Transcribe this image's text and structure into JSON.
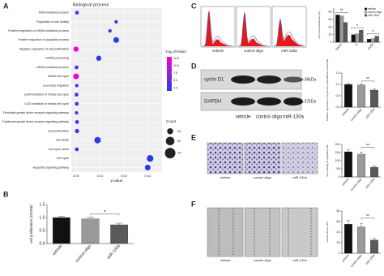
{
  "panel_labels": [
    "A",
    "B",
    "C",
    "D",
    "E",
    "F"
  ],
  "images": {
    "C": [
      "vehicle",
      "control oligo",
      "miR-130a"
    ],
    "D": {
      "bands": [
        "cyclin D1",
        "GAPDH"
      ],
      "markers": [
        "-36kDa",
        "-37kDa"
      ],
      "lanes": [
        "vehicle",
        "control oligo",
        "miR-130a"
      ]
    },
    "E": [
      "vehicle",
      "control oligo",
      "miR-130a"
    ],
    "F": [
      "vehicle",
      "control oligo",
      "miR-130a"
    ]
  },
  "chart_data": [
    {
      "type": "dot",
      "title": "Biological process",
      "xlabel": "p-value",
      "categories": [
        "RNA metabolic process",
        "Regulation of cell motility",
        "Positive regulation of mRNA metabolic process",
        "Positive regulation of apoptotic process",
        "Negative regulation of cell proliferation",
        "mRNA processing",
        "mRNA metabolic process",
        "Mitotic cell cycle",
        "Leucocyte migration",
        "G2/M transition of mitotic cell cycle",
        "G1/S transition of mitotic cell cycle",
        "Fibroblast growth factor receptor signaling pathway",
        "Epidermal growth factor receptor signaling pathway",
        "Cell proliferation",
        "Cell death",
        "Cell cycle arrest",
        "Cell cycle",
        "Apoptotic signaling pathway"
      ],
      "values": [
        0.0004,
        0.0168,
        0.0142,
        0.0168,
        1e-12,
        0.0095,
        0.0002,
        2e-12,
        0.0003,
        0.0002,
        0.0003,
        0.0002,
        0.0004,
        0.0004,
        0.009,
        0.0003,
        0.031,
        0.03
      ],
      "sizes": [
        10,
        8,
        8,
        22,
        18,
        18,
        10,
        22,
        8,
        10,
        10,
        8,
        10,
        12,
        28,
        10,
        30,
        22
      ],
      "xlim": [
        -0.002,
        0.036
      ],
      "xticks": [
        {
          "value": 0,
          "label": "0.00"
        },
        {
          "value": 0.01,
          "label": "0.01"
        },
        {
          "value": 0.02,
          "label": "0.02"
        },
        {
          "value": 0.03,
          "label": "0.03"
        }
      ],
      "color_title": "-log₁₀(Pvalue)",
      "clim": [
        1.5,
        13
      ],
      "cticks": [
        12.5,
        {
          "value": 10,
          "label": "10.0"
        },
        7.5,
        {
          "value": 5,
          "label": "5.0"
        },
        2.5
      ],
      "size_title": "Count",
      "size_legend": [
        25,
        50,
        75
      ],
      "grid": true
    },
    {
      "type": "bar",
      "ylabel": "cell proliferation (OD450)",
      "categories": [
        "vehicle",
        "control oligo",
        "miR-130a"
      ],
      "values": [
        1.0,
        0.95,
        0.72
      ],
      "errors": [
        0.04,
        0.06,
        0.06
      ],
      "colors": [
        "#111111",
        "#9a9a9a",
        "#5a5a5a"
      ],
      "ylim": [
        0,
        1.5
      ],
      "yticks": [
        {
          "value": 0,
          "label": "0.0"
        },
        0.5,
        {
          "value": 1,
          "label": "1.0"
        },
        1.5
      ],
      "annotation": "*"
    },
    {
      "type": "grouped_bar",
      "ylabel": "cell cycle distribution (%)",
      "categories": [
        "G0/G1",
        "S",
        "G2/M"
      ],
      "series": [
        {
          "name": "vehicle",
          "color": "#111111",
          "values": [
            72,
            20,
            8
          ]
        },
        {
          "name": "control oligo",
          "color": "#9a9a9a",
          "values": [
            69,
            22,
            9
          ]
        },
        {
          "name": "miR-130a",
          "color": "#5a5a5a",
          "values": [
            52,
            32,
            16
          ]
        }
      ],
      "ylim": [
        0,
        90
      ],
      "yticks": [
        0,
        20,
        40,
        60,
        80
      ],
      "annotations": [
        "**",
        "*",
        "*"
      ]
    },
    {
      "type": "bar",
      "ylabel": "Relative expression of cyclin D1 (normalized to GAPDH)",
      "categories": [
        "vehicle",
        "control oligo",
        "miR-130a"
      ],
      "values": [
        1.0,
        0.97,
        0.75
      ],
      "errors": [
        0.04,
        0.05,
        0.05
      ],
      "colors": [
        "#111111",
        "#9a9a9a",
        "#5a5a5a"
      ],
      "ylim": [
        0,
        1.5
      ],
      "yticks": [
        {
          "value": 0,
          "label": "0.0"
        },
        0.5,
        {
          "value": 1,
          "label": "1.0"
        },
        1.5
      ],
      "annotation": "**"
    },
    {
      "type": "bar",
      "ylabel": "The quantity of migrated cells",
      "categories": [
        "vehicle",
        "control oligo",
        "miR-130a"
      ],
      "values": [
        155,
        140,
        60
      ],
      "errors": [
        12,
        14,
        8
      ],
      "colors": [
        "#111111",
        "#9a9a9a",
        "#5a5a5a"
      ],
      "ylim": [
        0,
        200
      ],
      "yticks": [
        0,
        50,
        100,
        150,
        200
      ],
      "annotation": "**"
    },
    {
      "type": "bar",
      "ylabel": "wound closure (%)",
      "categories": [
        "vehicle",
        "control oligo",
        "miR-130a"
      ],
      "values": [
        55,
        50,
        25
      ],
      "errors": [
        7,
        6,
        3
      ],
      "colors": [
        "#111111",
        "#9a9a9a",
        "#5a5a5a"
      ],
      "ylim": [
        0,
        80
      ],
      "yticks": [
        0,
        20,
        40,
        60,
        80
      ],
      "annotation": "**"
    }
  ]
}
